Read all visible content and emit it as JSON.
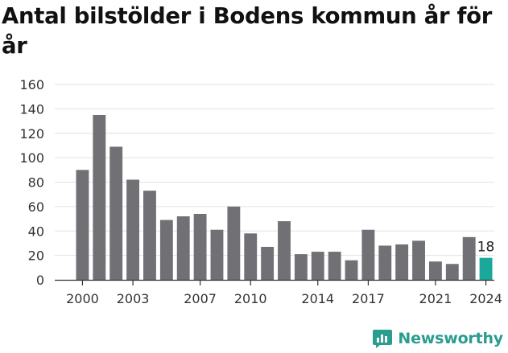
{
  "title": "Antal bilstölder i Bodens kommun år för år",
  "brand": {
    "name": "Newsworthy",
    "icon": "newsworthy-logo-icon"
  },
  "colors": {
    "bar": "#717075",
    "highlight": "#1aa89a",
    "grid": "#e2e2e2",
    "axis": "#333333",
    "brand": "#2a9d8f"
  },
  "chart_data": {
    "type": "bar",
    "title": "Antal bilstölder i Bodens kommun år för år",
    "xlabel": "",
    "ylabel": "",
    "categories": [
      2000,
      2001,
      2002,
      2003,
      2004,
      2005,
      2006,
      2007,
      2008,
      2009,
      2010,
      2011,
      2012,
      2013,
      2014,
      2015,
      2016,
      2017,
      2018,
      2019,
      2020,
      2021,
      2022,
      2023,
      2024
    ],
    "values": [
      90,
      135,
      109,
      82,
      73,
      49,
      52,
      54,
      41,
      60,
      38,
      27,
      48,
      21,
      23,
      23,
      16,
      41,
      28,
      29,
      32,
      15,
      13,
      35,
      18
    ],
    "x_tick_labels": [
      2000,
      2003,
      2007,
      2010,
      2014,
      2017,
      2021,
      2024
    ],
    "y_ticks": [
      0,
      20,
      40,
      60,
      80,
      100,
      120,
      140,
      160
    ],
    "ylim": [
      0,
      160
    ],
    "grid": true,
    "legend": "none",
    "highlight_category": 2024,
    "data_labels": [
      {
        "category": 2024,
        "text": "18"
      }
    ]
  }
}
